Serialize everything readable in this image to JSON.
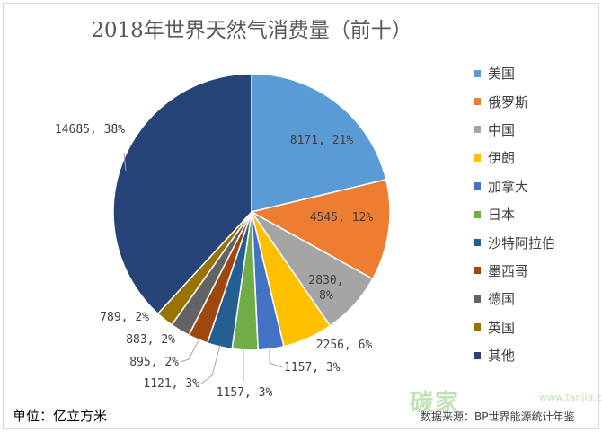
{
  "chart_data": {
    "type": "pie",
    "title": "2018年世界天然气消费量（前十）",
    "unit_label": "单位：亿立方米",
    "source": "数据来源：BP世界能源统计年鉴",
    "watermark_logo": "碳家",
    "watermark_url": "www.tanjia.com",
    "legend_position": "right",
    "slices": [
      {
        "name": "美国",
        "value": 8171,
        "label": "8171, 21%",
        "color": "#5b9bd5"
      },
      {
        "name": "俄罗斯",
        "value": 4545,
        "label": "4545, 12%",
        "color": "#ed7d31"
      },
      {
        "name": "中国",
        "value": 2830,
        "label": "2830, 8%",
        "label_lines": [
          "2830,",
          "8%"
        ],
        "color": "#a5a5a5"
      },
      {
        "name": "伊朗",
        "value": 2256,
        "label": "2256, 6%",
        "color": "#ffc000"
      },
      {
        "name": "加拿大",
        "value": 1157,
        "label": "1157, 3%",
        "color": "#4472c4"
      },
      {
        "name": "日本",
        "value": 1157,
        "label": "1157, 3%",
        "color": "#70ad47"
      },
      {
        "name": "沙特阿拉伯",
        "value": 1121,
        "label": "1121, 3%",
        "color": "#255e91"
      },
      {
        "name": "墨西哥",
        "value": 895,
        "label": "895, 2%",
        "color": "#9e480e"
      },
      {
        "name": "德国",
        "value": 883,
        "label": "883, 2%",
        "color": "#636363"
      },
      {
        "name": "英国",
        "value": 789,
        "label": "789, 2%",
        "color": "#997300"
      },
      {
        "name": "其他",
        "value": 14685,
        "label": "14685, 38%",
        "color": "#264478"
      }
    ]
  }
}
